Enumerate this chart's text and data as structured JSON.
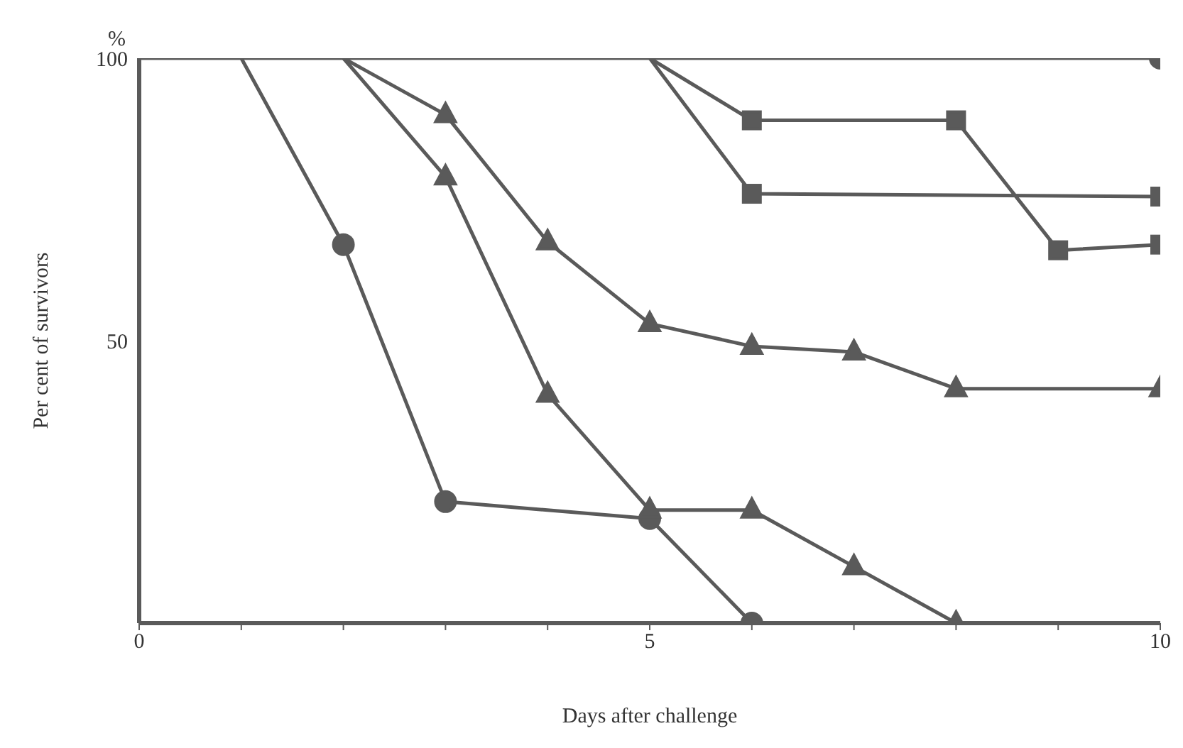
{
  "chart_data": {
    "type": "line",
    "xlabel": "Days after challenge",
    "ylabel": "Per cent of survivors",
    "annotations": [
      "%"
    ],
    "xlim": [
      0,
      10
    ],
    "ylim": [
      0,
      100
    ],
    "xticks": [
      0,
      {
        "value": 1,
        "label": null
      },
      {
        "value": 2,
        "label": null
      },
      {
        "value": 3,
        "label": null
      },
      {
        "value": 4,
        "label": null
      },
      5,
      {
        "value": 6,
        "label": null
      },
      {
        "value": 7,
        "label": null
      },
      {
        "value": 8,
        "label": null
      },
      {
        "value": 9,
        "label": null
      },
      10
    ],
    "yticks": [
      50,
      100
    ],
    "grid": false,
    "legend": false,
    "series": [
      {
        "color": "#5a5a5a",
        "marker": "circle",
        "x": [
          0,
          10
        ],
        "values": [
          100,
          100
        ]
      },
      {
        "color": "#5a5a5a",
        "marker": "square",
        "x": [
          5,
          6,
          8,
          9,
          10
        ],
        "values": [
          100,
          89,
          89,
          66,
          67
        ]
      },
      {
        "color": "#5a5a5a",
        "marker": "square",
        "x": [
          5,
          6,
          10
        ],
        "values": [
          100,
          76,
          75.5
        ]
      },
      {
        "color": "#5a5a5a",
        "marker": "triangle",
        "x": [
          2,
          3,
          4,
          5,
          6,
          7,
          8,
          10
        ],
        "values": [
          100,
          90,
          67.5,
          53,
          49,
          48,
          41.5,
          41.5
        ]
      },
      {
        "color": "#5a5a5a",
        "marker": "triangle",
        "x": [
          2,
          3,
          4,
          5,
          6,
          7,
          8
        ],
        "values": [
          100,
          79,
          40.5,
          20,
          20,
          10,
          0
        ]
      },
      {
        "color": "#5a5a5a",
        "marker": "circle",
        "x": [
          1,
          2,
          3,
          5,
          6
        ],
        "values": [
          100,
          67,
          21.5,
          18.5,
          0
        ]
      }
    ]
  }
}
